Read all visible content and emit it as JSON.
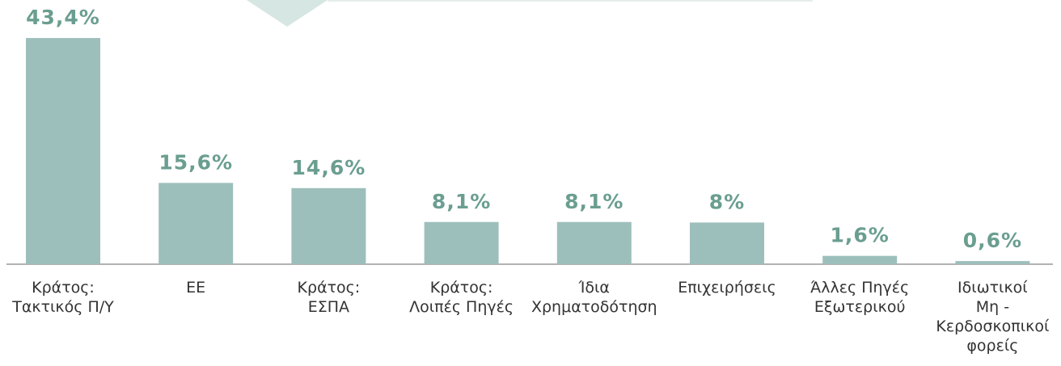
{
  "chart_data": {
    "type": "bar",
    "categories": [
      "Κράτος:\nΤακτικός Π/Υ",
      "ΕΕ",
      "Κράτος:\nΕΣΠΑ",
      "Κράτος:\nΛοιπές Πηγές",
      "Ίδια\nΧρηματοδότηση",
      "Επιχειρήσεις",
      "Άλλες Πηγές\nΕξωτερικού",
      "Ιδιωτικοί\nΜη -\nΚερδοσκοπικοί\nφορείς"
    ],
    "values": [
      43.4,
      15.6,
      14.6,
      8.1,
      8.1,
      8,
      1.6,
      0.6
    ],
    "value_labels": [
      "43,4%",
      "15,6%",
      "14,6%",
      "8,1%",
      "8,1%",
      "8%",
      "1,6%",
      "0,6%"
    ],
    "color": "#9dbfbc"
  }
}
